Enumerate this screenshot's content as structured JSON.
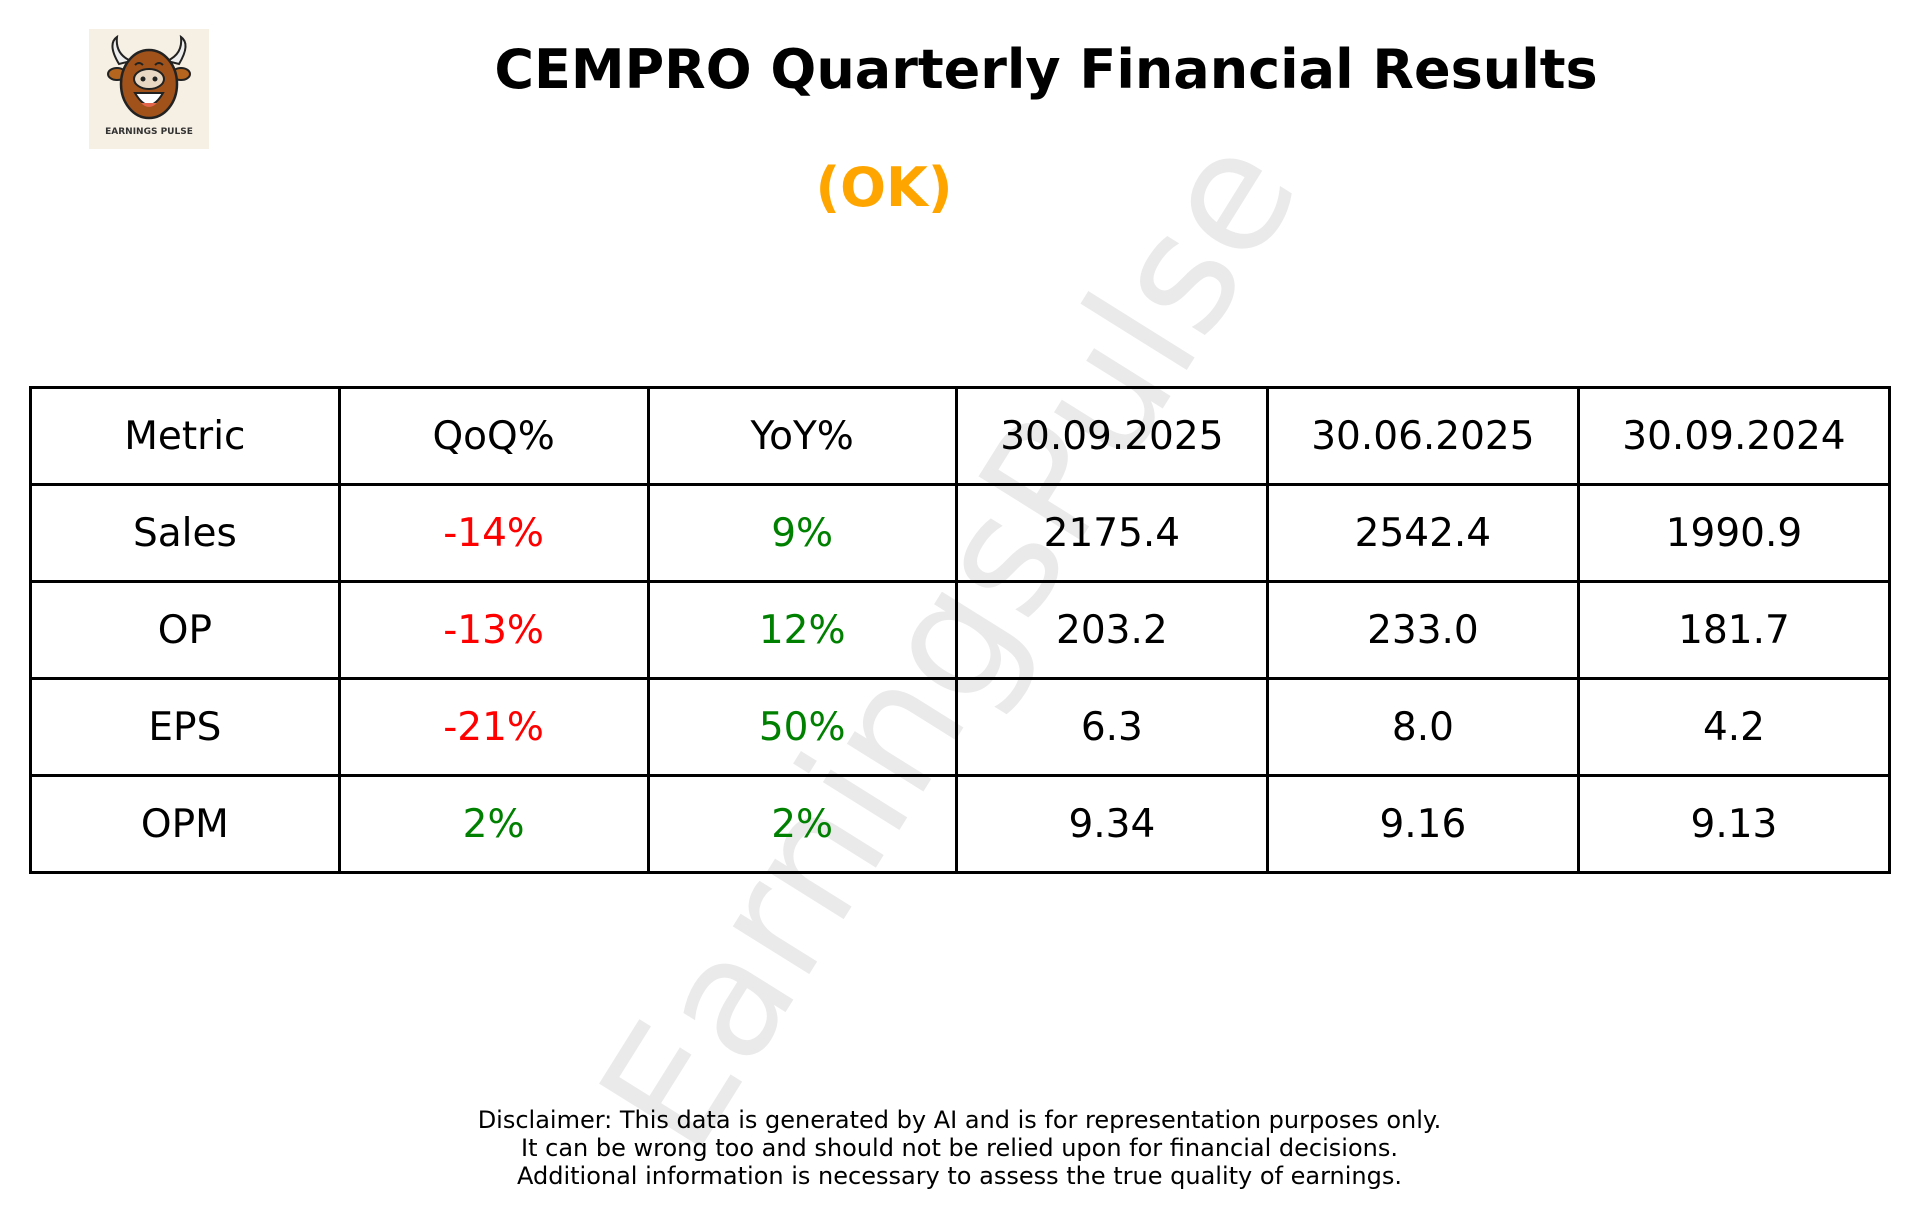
{
  "logo": {
    "text": "EARNINGS PULSE"
  },
  "header": {
    "title": "CEMPRO Quarterly Financial Results",
    "rating": "(OK)",
    "rating_color": "#FFA500"
  },
  "watermark": "EarningsPulse",
  "colors": {
    "negative": "#FF0000",
    "positive": "#008000"
  },
  "table": {
    "headers": [
      "Metric",
      "QoQ%",
      "YoY%",
      "30.09.2025",
      "30.06.2025",
      "30.09.2024"
    ],
    "rows": [
      {
        "metric": "Sales",
        "qoq": "-14%",
        "qoq_dir": "negative",
        "yoy": "9%",
        "yoy_dir": "positive",
        "v1": "2175.4",
        "v2": "2542.4",
        "v3": "1990.9"
      },
      {
        "metric": "OP",
        "qoq": "-13%",
        "qoq_dir": "negative",
        "yoy": "12%",
        "yoy_dir": "positive",
        "v1": "203.2",
        "v2": "233.0",
        "v3": "181.7"
      },
      {
        "metric": "EPS",
        "qoq": "-21%",
        "qoq_dir": "negative",
        "yoy": "50%",
        "yoy_dir": "positive",
        "v1": "6.3",
        "v2": "8.0",
        "v3": "4.2"
      },
      {
        "metric": "OPM",
        "qoq": "2%",
        "qoq_dir": "positive",
        "yoy": "2%",
        "yoy_dir": "positive",
        "v1": "9.34",
        "v2": "9.16",
        "v3": "9.13"
      }
    ]
  },
  "disclaimer": [
    "Disclaimer: This data is generated by AI and is for representation purposes only.",
    "It can be wrong too and should not be relied upon for financial decisions.",
    "Additional information is necessary to assess the true quality of earnings."
  ]
}
